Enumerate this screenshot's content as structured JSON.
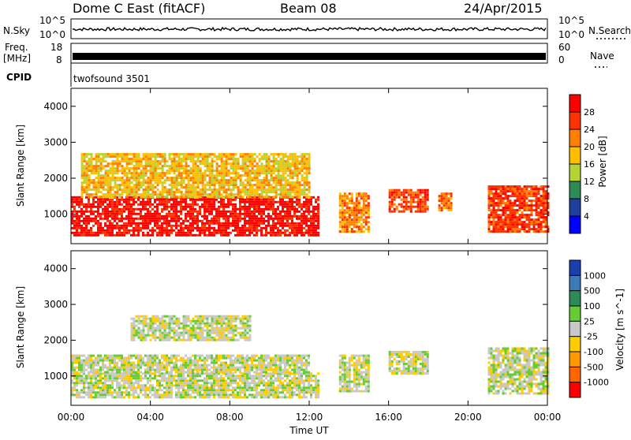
{
  "header": {
    "station": "Dome C East (fitACF)",
    "beam": "Beam 08",
    "date": "24/Apr/2015"
  },
  "nsky_panel": {
    "left_label": "N.Sky",
    "right_label": "N.Search",
    "top_tick": "10^5",
    "bottom_tick": "10^0",
    "right_top_tick": "10^5",
    "right_bottom_tick": "10^0"
  },
  "freq_panel": {
    "left_label_line1": "Freq.",
    "left_label_line2": "[MHz]",
    "right_label": "Nave",
    "left_ticks": [
      "18",
      "8"
    ],
    "right_ticks": [
      "60",
      "0"
    ]
  },
  "cpid": {
    "label": "CPID",
    "value": "twofsound 3501"
  },
  "power_panel": {
    "ylabel": "Slant Range [km]",
    "colorbar_label": "Power [dB]",
    "colorbar_ticks": [
      "28",
      "24",
      "20",
      "16",
      "12",
      "8",
      "4"
    ],
    "colorbar_colors": [
      "#ff0000",
      "#ff3300",
      "#ff7f00",
      "#ffbf00",
      "#b5d334",
      "#2e8b57",
      "#2040a0",
      "#0000ff"
    ]
  },
  "velocity_panel": {
    "ylabel": "Slant Range [km]",
    "colorbar_label": "Velocity [m s^-1]",
    "colorbar_ticks": [
      "1000",
      "500",
      "100",
      "25",
      "-25",
      "-100",
      "-500",
      "-1000"
    ],
    "colorbar_colors": [
      "#1a3fb0",
      "#3c7ab8",
      "#2e8b57",
      "#66cc33",
      "#c8c8c8",
      "#ffcc00",
      "#ff9900",
      "#ff6600",
      "#ff0000"
    ]
  },
  "x_axis": {
    "label": "Time UT",
    "ticks": [
      "00:00",
      "04:00",
      "08:00",
      "12:00",
      "16:00",
      "20:00",
      "00:00"
    ]
  },
  "chart_data": [
    {
      "type": "heatmap",
      "title": "Power [dB]",
      "xlabel": "Time UT",
      "ylabel": "Slant Range [km]",
      "x_range_hours": [
        0,
        24
      ],
      "ylim": [
        180,
        4500
      ],
      "y_ticks": [
        1000,
        2000,
        3000,
        4000
      ],
      "colorbar_range": [
        0,
        32
      ],
      "regions": [
        {
          "t": [
            0.0,
            12.5
          ],
          "r": [
            400,
            1500
          ],
          "value": 30
        },
        {
          "t": [
            0.5,
            12.0
          ],
          "r": [
            1500,
            2700
          ],
          "value": 18
        },
        {
          "t": [
            13.5,
            15.0
          ],
          "r": [
            500,
            1600
          ],
          "value": 24
        },
        {
          "t": [
            16.0,
            18.0
          ],
          "r": [
            1100,
            1700
          ],
          "value": 26
        },
        {
          "t": [
            18.5,
            19.2
          ],
          "r": [
            1100,
            1600
          ],
          "value": 24
        },
        {
          "t": [
            21.0,
            24.0
          ],
          "r": [
            500,
            1800
          ],
          "value": 26
        }
      ]
    },
    {
      "type": "heatmap",
      "title": "Velocity [m s^-1]",
      "xlabel": "Time UT",
      "ylabel": "Slant Range [km]",
      "x_range_hours": [
        0,
        24
      ],
      "ylim": [
        180,
        4500
      ],
      "y_ticks": [
        1000,
        2000,
        3000,
        4000
      ],
      "colorbar_range": [
        -1000,
        1000
      ],
      "regions": [
        {
          "t": [
            0.0,
            12.5
          ],
          "r": [
            400,
            1100
          ],
          "value": -100
        },
        {
          "t": [
            0.0,
            12.0
          ],
          "r": [
            1100,
            1600
          ],
          "value": 0
        },
        {
          "t": [
            3.0,
            9.0
          ],
          "r": [
            2000,
            2700
          ],
          "value": -100
        },
        {
          "t": [
            13.5,
            15.0
          ],
          "r": [
            600,
            1600
          ],
          "value": 100
        },
        {
          "t": [
            16.0,
            18.0
          ],
          "r": [
            1100,
            1700
          ],
          "value": 100
        },
        {
          "t": [
            21.0,
            24.0
          ],
          "r": [
            500,
            1800
          ],
          "value": 100
        }
      ]
    }
  ]
}
